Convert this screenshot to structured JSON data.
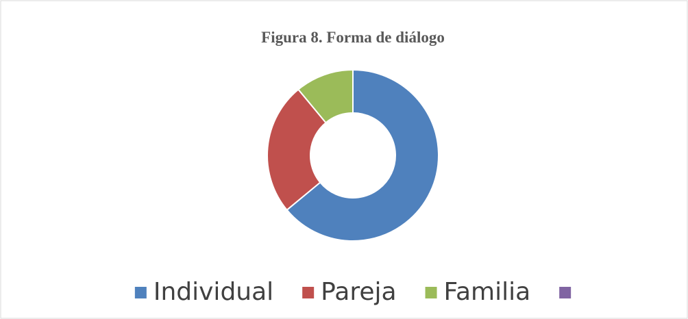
{
  "chart_data": {
    "type": "donut",
    "title": "Figura 8. Forma de diálogo",
    "categories": [
      "Individual",
      "Pareja",
      "Familia",
      null
    ],
    "values": [
      64,
      25,
      11,
      0
    ],
    "colors": [
      "#4f81bd",
      "#c0504d",
      "#9bbb59",
      "#8064a2"
    ],
    "legend": "bottom"
  }
}
